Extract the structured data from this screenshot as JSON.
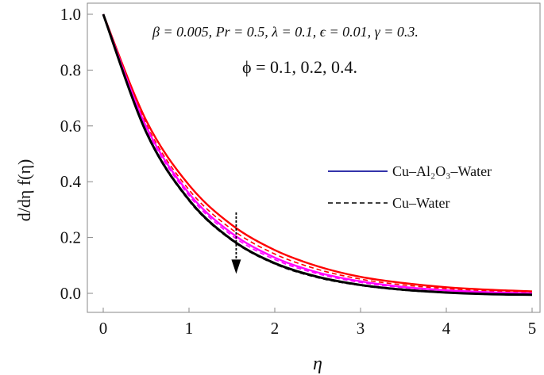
{
  "chart_data": {
    "type": "line",
    "xlabel": "η",
    "ylabel": "d/dη f(η)",
    "xlim": [
      0,
      5
    ],
    "ylim": [
      -0.05,
      1.0
    ],
    "xticks": [
      0,
      1,
      2,
      3,
      4,
      5
    ],
    "yticks": [
      0.0,
      0.2,
      0.4,
      0.6,
      0.8,
      1.0
    ],
    "grid": false,
    "annotation_params": "β = 0.005, Pr = 0.5, λ = 0.1, ϵ = 0.01, γ = 0.3.",
    "annotation_phi": "ϕ = 0.1, 0.2, 0.4.",
    "legend_position": "center-right",
    "legend": [
      {
        "label": "Cu–Al₂O₃–Water",
        "style": "solid",
        "color": "#3333aa"
      },
      {
        "label": "Cu–Water",
        "style": "dashed",
        "color": "#000000"
      }
    ],
    "arrow": {
      "from": [
        1.55,
        0.29
      ],
      "to": [
        1.55,
        0.07
      ],
      "direction": "decreasing ϕ effect"
    },
    "series": [
      {
        "style": "solid",
        "color": "#ff0000",
        "x": [
          0,
          0.5,
          1,
          1.5,
          2,
          2.5,
          3,
          3.5,
          4,
          4.5,
          5
        ],
        "values": [
          1.0,
          0.62,
          0.388,
          0.245,
          0.155,
          0.097,
          0.059,
          0.037,
          0.022,
          0.013,
          0.007
        ]
      },
      {
        "style": "dashed",
        "color": "#ff0000",
        "x": [
          0,
          0.5,
          1,
          1.5,
          2,
          2.5,
          3,
          3.5,
          4,
          4.5,
          5
        ],
        "values": [
          1.0,
          0.607,
          0.371,
          0.229,
          0.141,
          0.086,
          0.051,
          0.03,
          0.017,
          0.009,
          0.004
        ]
      },
      {
        "style": "solid",
        "color": "#ff00ff",
        "x": [
          0,
          0.5,
          1,
          1.5,
          2,
          2.5,
          3,
          3.5,
          4,
          4.5,
          5
        ],
        "values": [
          1.0,
          0.598,
          0.358,
          0.215,
          0.128,
          0.075,
          0.043,
          0.023,
          0.011,
          0.004,
          0.0
        ]
      },
      {
        "style": "dashed",
        "color": "#ff00ff",
        "x": [
          0,
          0.5,
          1,
          1.5,
          2,
          2.5,
          3,
          3.5,
          4,
          4.5,
          5
        ],
        "values": [
          1.0,
          0.592,
          0.35,
          0.207,
          0.121,
          0.07,
          0.039,
          0.02,
          0.009,
          0.002,
          -0.002
        ]
      },
      {
        "style": "solid",
        "color": "#000000",
        "x": [
          0,
          0.5,
          1,
          1.5,
          2,
          2.5,
          3,
          3.5,
          4,
          4.5,
          5
        ],
        "values": [
          1.0,
          0.578,
          0.335,
          0.192,
          0.108,
          0.059,
          0.03,
          0.013,
          0.003,
          -0.003,
          -0.005
        ]
      },
      {
        "style": "dashed",
        "color": "#000000",
        "x": [
          0,
          0.5,
          1,
          1.5,
          2,
          2.5,
          3,
          3.5,
          4,
          4.5,
          5
        ],
        "values": [
          1.0,
          0.575,
          0.331,
          0.189,
          0.105,
          0.056,
          0.028,
          0.011,
          0.002,
          -0.004,
          -0.006
        ]
      }
    ]
  }
}
